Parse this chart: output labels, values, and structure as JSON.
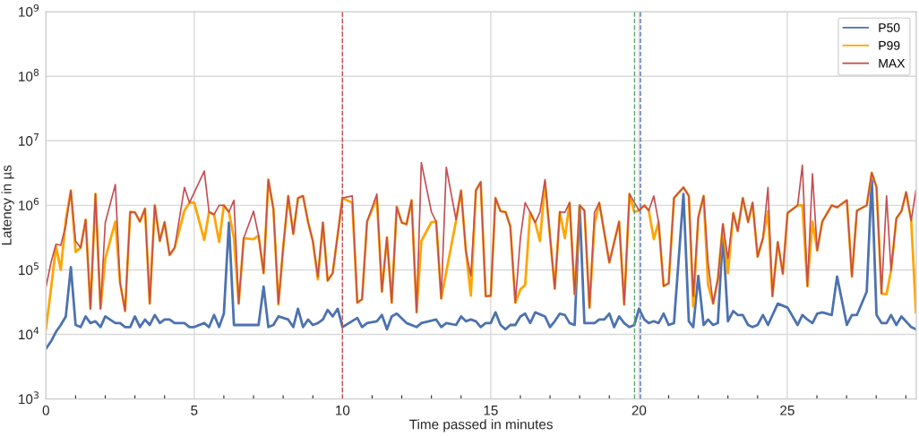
{
  "chart_data": {
    "type": "line",
    "xlabel": "Time passed in minutes",
    "ylabel": "Latency in µs",
    "log": "y",
    "grid": true,
    "legend": "top right",
    "line_style": "solid",
    "marker": "none",
    "xlim": [
      0,
      29.35
    ],
    "ylim": [
      1000,
      1000000000
    ],
    "xticks": [
      0,
      {
        "value": 1,
        "label": null
      },
      {
        "value": 2,
        "label": null
      },
      {
        "value": 3,
        "label": null
      },
      {
        "value": 4,
        "label": null
      },
      5,
      {
        "value": 6,
        "label": null
      },
      {
        "value": 7,
        "label": null
      },
      {
        "value": 8,
        "label": null
      },
      {
        "value": 9,
        "label": null
      },
      10,
      {
        "value": 11,
        "label": null
      },
      {
        "value": 12,
        "label": null
      },
      {
        "value": 13,
        "label": null
      },
      {
        "value": 14,
        "label": null
      },
      15,
      {
        "value": 16,
        "label": null
      },
      {
        "value": 17,
        "label": null
      },
      {
        "value": 18,
        "label": null
      },
      {
        "value": 19,
        "label": null
      },
      20,
      {
        "value": 21,
        "label": null
      },
      {
        "value": 22,
        "label": null
      },
      {
        "value": 23,
        "label": null
      },
      {
        "value": 24,
        "label": null
      },
      25,
      {
        "value": 26,
        "label": null
      },
      {
        "value": 27,
        "label": null
      },
      {
        "value": 28,
        "label": null
      },
      {
        "value": 29,
        "label": null
      }
    ],
    "yticks": [
      {
        "value": 1000,
        "label": "10$^{3}$"
      },
      {
        "value": 10000,
        "label": "10$^{4}$"
      },
      {
        "value": 100000,
        "label": "10$^{5}$"
      },
      {
        "value": 1000000,
        "label": "10$^{6}$"
      },
      {
        "value": 10000000,
        "label": "10$^{7}$"
      },
      {
        "value": 100000000,
        "label": "10$^{8}$"
      },
      {
        "value": 1000000000,
        "label": "10$^{9}$"
      }
    ],
    "ref_lines": [
      {
        "axis": "x",
        "value": 10.0,
        "color": "#c44e52",
        "line_style": "dashed"
      },
      {
        "axis": "x",
        "value": 19.85,
        "color": "#55a868",
        "line_style": "dashed"
      },
      {
        "axis": "x",
        "value": 20.05,
        "color": "#4c72b0",
        "line_style": "dashed"
      }
    ],
    "series": [
      {
        "name": "P50",
        "color": "#4c72b0",
        "x": [
          0,
          0.17,
          0.34,
          0.5,
          0.67,
          0.84,
          1.0,
          1.17,
          1.34,
          1.5,
          1.67,
          1.84,
          2.0,
          2.34,
          2.5,
          2.67,
          2.84,
          3.0,
          3.17,
          3.34,
          3.5,
          3.67,
          3.84,
          4.0,
          4.17,
          4.34,
          4.67,
          4.84,
          5.0,
          5.34,
          5.5,
          5.67,
          5.84,
          6.0,
          6.17,
          6.34,
          7.17,
          7.34,
          7.5,
          7.67,
          7.84,
          8.17,
          8.34,
          8.5,
          8.67,
          8.84,
          9.0,
          9.17,
          9.34,
          9.5,
          9.67,
          9.84,
          10.0,
          10.5,
          10.66,
          10.83,
          11.16,
          11.33,
          11.5,
          11.66,
          11.83,
          12.16,
          12.5,
          12.66,
          13.16,
          13.33,
          13.5,
          13.83,
          14.0,
          14.16,
          14.33,
          14.5,
          14.66,
          14.83,
          15.0,
          15.16,
          15.33,
          15.5,
          15.66,
          15.83,
          16.0,
          16.16,
          16.33,
          16.5,
          16.83,
          17.0,
          17.16,
          17.33,
          17.5,
          17.66,
          17.83,
          18.0,
          18.16,
          18.5,
          18.66,
          18.83,
          19.0,
          19.16,
          19.33,
          19.5,
          19.68,
          19.84,
          20.0,
          20.18,
          20.33,
          20.5,
          20.66,
          20.83,
          21.0,
          21.18,
          21.5,
          21.68,
          21.83,
          22.0,
          22.18,
          22.33,
          22.5,
          22.66,
          22.83,
          23.0,
          23.18,
          23.33,
          23.5,
          23.68,
          23.83,
          24.0,
          24.18,
          24.35,
          24.68,
          25.01,
          25.35,
          25.51,
          25.68,
          25.85,
          26.01,
          26.18,
          26.5,
          26.68,
          27.01,
          27.18,
          27.35,
          27.68,
          27.85,
          28.01,
          28.18,
          28.35,
          28.5,
          28.68,
          28.85,
          29.18,
          29.34
        ],
        "values": [
          6000.0,
          7800.0,
          11000.0,
          14000.0,
          19000.0,
          110000.0,
          14000.0,
          13000.0,
          19000.0,
          15000.0,
          16000.0,
          13000.0,
          19000.0,
          15000.0,
          15000.0,
          13000.0,
          13000.0,
          19000.0,
          13000.0,
          17000.0,
          14000.0,
          20000.0,
          15000.0,
          17000.0,
          17000.0,
          15000.0,
          15000.0,
          13000.0,
          13000.0,
          15000.0,
          13000.0,
          20000.0,
          13000.0,
          21000.0,
          540000.0,
          14000.0,
          14000.0,
          55000.0,
          13000.0,
          14000.0,
          19000.0,
          17000.0,
          13000.0,
          25000.0,
          13000.0,
          17000.0,
          14000.0,
          15000.0,
          17000.0,
          24000.0,
          19000.0,
          25000.0,
          13000.0,
          18000.0,
          13000.0,
          15000.0,
          16000.0,
          20000.0,
          12000.0,
          19000.0,
          21000.0,
          15000.0,
          13000.0,
          15000.0,
          17000.0,
          13000.0,
          15000.0,
          14000.0,
          19000.0,
          16000.0,
          17000.0,
          16000.0,
          13000.0,
          15000.0,
          15000.0,
          22000.0,
          14000.0,
          12000.0,
          14000.0,
          14000.0,
          19000.0,
          21000.0,
          15000.0,
          22000.0,
          19000.0,
          13000.0,
          16000.0,
          21000.0,
          20000.0,
          15000.0,
          14000.0,
          980000.0,
          15000.0,
          15000.0,
          17000.0,
          17000.0,
          21000.0,
          13000.0,
          19000.0,
          15000.0,
          13000.0,
          14000.0,
          25000.0,
          17000.0,
          15000.0,
          16000.0,
          15000.0,
          21000.0,
          14000.0,
          15000.0,
          1500000.0,
          16000.0,
          13000.0,
          81000.0,
          14000.0,
          17000.0,
          14000.0,
          15000.0,
          360000.0,
          16000.0,
          23000.0,
          20000.0,
          20000.0,
          14000.0,
          13000.0,
          14000.0,
          20000.0,
          14000.0,
          30000.0,
          26000.0,
          14000.0,
          20000.0,
          17000.0,
          15000.0,
          21000.0,
          22000.0,
          20000.0,
          79000.0,
          14000.0,
          20000.0,
          20000.0,
          46000.0,
          2700000.0,
          20000.0,
          15000.0,
          15000.0,
          20000.0,
          14000.0,
          19000.0,
          13000.0,
          12000.0
        ]
      },
      {
        "name": "P99",
        "color": "#ffa500",
        "x": [
          0,
          0.17,
          0.34,
          0.5,
          0.67,
          0.84,
          1.0,
          1.17,
          1.34,
          1.5,
          1.67,
          1.84,
          2.0,
          2.34,
          2.5,
          2.67,
          2.84,
          3.0,
          3.17,
          3.34,
          3.5,
          3.67,
          3.84,
          4.0,
          4.17,
          4.34,
          4.67,
          4.84,
          5.0,
          5.34,
          5.5,
          5.67,
          5.84,
          6.0,
          6.17,
          6.34,
          6.5,
          6.67,
          7.0,
          7.17,
          7.34,
          7.5,
          7.67,
          7.84,
          8.0,
          8.17,
          8.34,
          8.5,
          8.67,
          8.84,
          9.0,
          9.17,
          9.34,
          9.5,
          9.67,
          10.0,
          10.33,
          10.5,
          10.66,
          10.83,
          11.16,
          11.33,
          11.5,
          11.66,
          11.83,
          12.0,
          12.16,
          12.33,
          12.5,
          12.66,
          13.0,
          13.16,
          13.33,
          13.83,
          14.0,
          14.16,
          14.33,
          14.5,
          14.66,
          14.83,
          15.0,
          15.16,
          15.33,
          15.5,
          15.66,
          15.83,
          16.0,
          16.16,
          16.33,
          16.5,
          16.66,
          16.83,
          17.16,
          17.33,
          17.5,
          17.66,
          17.83,
          18.0,
          18.16,
          18.33,
          18.5,
          18.66,
          19.0,
          19.33,
          19.5,
          19.68,
          19.84,
          20.0,
          20.18,
          20.33,
          20.5,
          20.66,
          20.83,
          21.0,
          21.18,
          21.5,
          21.68,
          21.83,
          22.0,
          22.18,
          22.33,
          22.5,
          22.66,
          22.83,
          23.0,
          23.18,
          23.33,
          23.5,
          23.68,
          23.83,
          24.0,
          24.18,
          24.35,
          24.5,
          24.68,
          24.85,
          25.01,
          25.35,
          25.51,
          25.68,
          25.85,
          26.01,
          26.18,
          26.5,
          26.68,
          27.01,
          27.18,
          27.35,
          27.68,
          27.85,
          28.01,
          28.18,
          28.35,
          28.5,
          28.68,
          28.85,
          29.01,
          29.18,
          29.34
        ],
        "values": [
          12000.0,
          51000.0,
          230000.0,
          100000.0,
          600000.0,
          1700000.0,
          190000.0,
          220000.0,
          600000.0,
          25000.0,
          1500000.0,
          25000.0,
          150000.0,
          560000.0,
          63000.0,
          23000.0,
          790000.0,
          780000.0,
          560000.0,
          890000.0,
          30000.0,
          1000000.0,
          280000.0,
          550000.0,
          170000.0,
          220000.0,
          830000.0,
          1100000.0,
          1100000.0,
          290000.0,
          790000.0,
          720000.0,
          270000.0,
          1000000.0,
          790000.0,
          310000.0,
          30000.0,
          310000.0,
          300000.0,
          340000.0,
          89000.0,
          2500000.0,
          890000.0,
          29000.0,
          220000.0,
          1400000.0,
          360000.0,
          1300000.0,
          1400000.0,
          550000.0,
          280000.0,
          71000.0,
          540000.0,
          68000.0,
          89000.0,
          1300000.0,
          1100000.0,
          31000.0,
          35000.0,
          560000.0,
          1300000.0,
          46000.0,
          320000.0,
          31000.0,
          950000.0,
          540000.0,
          510000.0,
          1200000.0,
          22000.0,
          280000.0,
          550000.0,
          560000.0,
          36000.0,
          580000.0,
          1700000.0,
          200000.0,
          40000.0,
          1700000.0,
          2300000.0,
          39000.0,
          39000.0,
          1300000.0,
          810000.0,
          790000.0,
          470000.0,
          31000.0,
          50000.0,
          58000.0,
          780000.0,
          540000.0,
          280000.0,
          2300000.0,
          51000.0,
          790000.0,
          310000.0,
          1100000.0,
          42000.0,
          1000000.0,
          830000.0,
          26000.0,
          510000.0,
          1100000.0,
          130000.0,
          560000.0,
          29000.0,
          1500000.0,
          790000.0,
          830000.0,
          1000000.0,
          830000.0,
          300000.0,
          550000.0,
          56000.0,
          62000.0,
          1300000.0,
          1900000.0,
          1400000.0,
          27000.0,
          650000.0,
          1400000.0,
          58000.0,
          30000.0,
          72000.0,
          510000.0,
          89000.0,
          760000.0,
          400000.0,
          1300000.0,
          550000.0,
          1100000.0,
          160000.0,
          310000.0,
          810000.0,
          39000.0,
          270000.0,
          87000.0,
          760000.0,
          1000000.0,
          1000000.0,
          56000.0,
          560000.0,
          200000.0,
          560000.0,
          1000000.0,
          930000.0,
          1200000.0,
          79000.0,
          830000.0,
          1000000.0,
          3200000.0,
          1900000.0,
          43000.0,
          42000.0,
          98000.0,
          630000.0,
          810000.0,
          1600000.0,
          580000.0,
          22000.0
        ]
      },
      {
        "name": "MAX",
        "color": "#c44e52",
        "x": [
          0,
          0.17,
          0.34,
          0.5,
          0.67,
          0.84,
          1.0,
          1.17,
          1.34,
          1.5,
          1.67,
          1.84,
          2.0,
          2.34,
          2.5,
          2.67,
          2.84,
          3.0,
          3.17,
          3.34,
          3.5,
          3.67,
          3.84,
          4.0,
          4.17,
          4.34,
          4.67,
          4.84,
          5.34,
          5.5,
          5.67,
          5.84,
          6.0,
          6.17,
          6.34,
          6.5,
          6.67,
          7.0,
          7.17,
          7.34,
          7.5,
          7.67,
          7.84,
          8.0,
          8.17,
          8.34,
          8.5,
          8.67,
          8.84,
          9.0,
          9.17,
          9.34,
          9.5,
          9.67,
          10.0,
          10.33,
          10.5,
          10.66,
          10.83,
          11.16,
          11.33,
          11.5,
          11.66,
          11.83,
          12.0,
          12.16,
          12.33,
          12.5,
          12.66,
          13.0,
          13.16,
          13.33,
          13.5,
          13.83,
          14.0,
          14.16,
          14.33,
          14.5,
          14.66,
          14.83,
          15.0,
          15.16,
          15.33,
          15.5,
          15.66,
          15.83,
          16.0,
          16.16,
          16.33,
          16.5,
          16.66,
          16.83,
          17.16,
          17.33,
          17.5,
          17.66,
          17.83,
          18.0,
          18.16,
          18.33,
          18.5,
          18.66,
          19.0,
          19.33,
          19.5,
          19.68,
          20.0,
          20.18,
          20.33,
          20.5,
          20.66,
          20.83,
          21.0,
          21.18,
          21.5,
          21.68,
          21.83,
          22.0,
          22.18,
          22.33,
          22.5,
          22.66,
          22.83,
          23.0,
          23.18,
          23.33,
          23.5,
          23.68,
          23.83,
          24.0,
          24.18,
          24.35,
          24.5,
          24.68,
          24.85,
          25.01,
          25.35,
          25.51,
          25.68,
          25.85,
          26.01,
          26.18,
          26.5,
          26.68,
          27.01,
          27.18,
          27.35,
          27.68,
          27.85,
          28.01,
          28.18,
          28.35,
          28.5,
          28.68,
          28.85,
          29.01,
          29.18,
          29.34
        ],
        "values": [
          54000.0,
          130000.0,
          250000.0,
          240000.0,
          490000.0,
          1700000.0,
          280000.0,
          220000.0,
          600000.0,
          25000.0,
          1500000.0,
          25000.0,
          540000.0,
          2100000.0,
          63000.0,
          23000.0,
          790000.0,
          780000.0,
          560000.0,
          890000.0,
          30000.0,
          1000000.0,
          280000.0,
          550000.0,
          170000.0,
          220000.0,
          1900000.0,
          1100000.0,
          3400000.0,
          790000.0,
          720000.0,
          1000000.0,
          1000000.0,
          790000.0,
          1200000.0,
          30000.0,
          310000.0,
          810000.0,
          340000.0,
          89000.0,
          2500000.0,
          890000.0,
          30000.0,
          220000.0,
          1400000.0,
          360000.0,
          1300000.0,
          1400000.0,
          550000.0,
          280000.0,
          78000.0,
          540000.0,
          68000.0,
          89000.0,
          1300000.0,
          1400000.0,
          31000.0,
          35000.0,
          560000.0,
          1500000.0,
          46000.0,
          320000.0,
          31000.0,
          950000.0,
          540000.0,
          510000.0,
          1200000.0,
          22000.0,
          4600000.0,
          790000.0,
          560000.0,
          36000.0,
          3900000.0,
          600000.0,
          1700000.0,
          200000.0,
          81000.0,
          1700000.0,
          2300000.0,
          39000.0,
          40000.0,
          1300000.0,
          810000.0,
          790000.0,
          470000.0,
          31000.0,
          310000.0,
          1100000.0,
          780000.0,
          540000.0,
          780000.0,
          2500000.0,
          51000.0,
          790000.0,
          780000.0,
          1100000.0,
          42000.0,
          1000000.0,
          830000.0,
          26000.0,
          780000.0,
          1100000.0,
          130000.0,
          560000.0,
          29000.0,
          1500000.0,
          830000.0,
          1000000.0,
          830000.0,
          1400000.0,
          550000.0,
          56000.0,
          62000.0,
          1300000.0,
          1900000.0,
          1400000.0,
          39000.0,
          650000.0,
          1400000.0,
          130000.0,
          30000.0,
          72000.0,
          510000.0,
          150000.0,
          760000.0,
          400000.0,
          1300000.0,
          550000.0,
          1100000.0,
          160000.0,
          310000.0,
          1900000.0,
          39000.0,
          270000.0,
          87000.0,
          760000.0,
          1000000.0,
          4200000.0,
          56000.0,
          3100000.0,
          200000.0,
          560000.0,
          1000000.0,
          930000.0,
          1200000.0,
          79000.0,
          830000.0,
          1000000.0,
          3200000.0,
          1900000.0,
          43000.0,
          1400000.0,
          98000.0,
          630000.0,
          810000.0,
          1600000.0,
          580000.0,
          1700000.0
        ]
      }
    ]
  }
}
